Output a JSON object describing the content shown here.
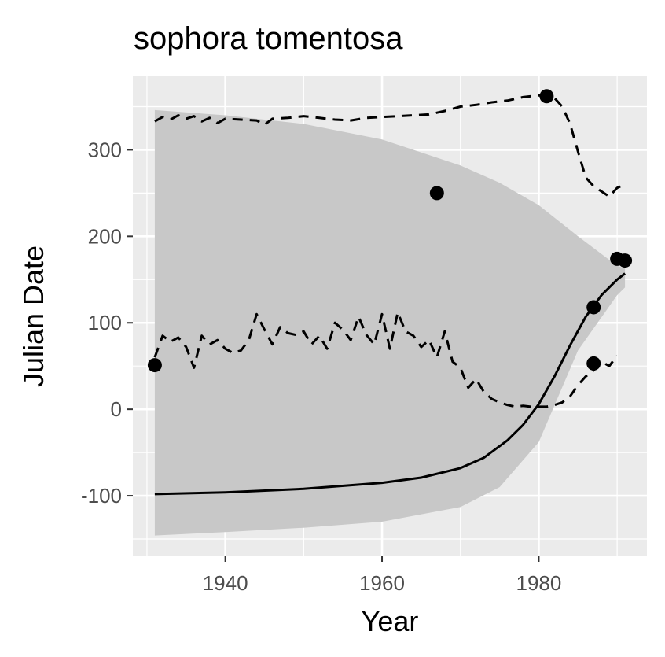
{
  "chart_data": {
    "type": "scatter",
    "title": "sophora tomentosa",
    "xlabel": "Year",
    "ylabel": "Julian Date",
    "xlim": [
      1928.2,
      1993.8
    ],
    "ylim": [
      -170,
      385
    ],
    "x_ticks": [
      1940,
      1960,
      1980
    ],
    "x_tick_labels": [
      "1940",
      "1960",
      "1980"
    ],
    "y_ticks": [
      -100,
      0,
      100,
      200,
      300
    ],
    "y_tick_labels": [
      "-100",
      "0",
      "100",
      "200",
      "300"
    ],
    "grid": true,
    "legend": "none",
    "points": [
      {
        "x": 1931,
        "y": 51
      },
      {
        "x": 1967,
        "y": 250
      },
      {
        "x": 1981,
        "y": 362
      },
      {
        "x": 1987,
        "y": 118
      },
      {
        "x": 1987,
        "y": 53
      },
      {
        "x": 1990,
        "y": 174
      },
      {
        "x": 1991,
        "y": 172
      }
    ],
    "fit_line": {
      "x": [
        1931,
        1940,
        1950,
        1960,
        1965,
        1970,
        1973,
        1976,
        1978,
        1980,
        1982,
        1984,
        1986,
        1988,
        1990,
        1991
      ],
      "y": [
        -98,
        -96,
        -92,
        -85,
        -79,
        -68,
        -56,
        -36,
        -18,
        6,
        38,
        74,
        107,
        132,
        150,
        157
      ]
    },
    "confidence_band": {
      "x": [
        1931,
        1940,
        1950,
        1960,
        1970,
        1975,
        1980,
        1985,
        1990,
        1991
      ],
      "upper": [
        346,
        340,
        330,
        312,
        282,
        262,
        236,
        200,
        166,
        163
      ],
      "lower": [
        -146,
        -142,
        -137,
        -130,
        -113,
        -90,
        -38,
        68,
        132,
        141
      ]
    },
    "upper_dashed": {
      "x": [
        1931,
        1932,
        1933,
        1934,
        1935,
        1936,
        1937,
        1938,
        1939,
        1940,
        1942,
        1944,
        1945,
        1946,
        1948,
        1950,
        1952,
        1954,
        1956,
        1958,
        1960,
        1962,
        1964,
        1966,
        1968,
        1970,
        1972,
        1974,
        1976,
        1978,
        1980,
        1982,
        1983,
        1984,
        1985,
        1986,
        1987,
        1988,
        1989,
        1990,
        1991
      ],
      "y": [
        333,
        338,
        335,
        340,
        336,
        339,
        333,
        337,
        331,
        336,
        335,
        334,
        329,
        336,
        337,
        339,
        337,
        335,
        334,
        337,
        338,
        339,
        340,
        341,
        345,
        350,
        352,
        355,
        357,
        361,
        363,
        360,
        350,
        330,
        298,
        268,
        258,
        252,
        246,
        256,
        260
      ]
    },
    "lower_dashed": {
      "x": [
        1931,
        1932,
        1933,
        1934,
        1935,
        1936,
        1937,
        1938,
        1939,
        1940,
        1941,
        1942,
        1943,
        1944,
        1945,
        1946,
        1947,
        1948,
        1949,
        1950,
        1951,
        1952,
        1953,
        1954,
        1955,
        1956,
        1957,
        1958,
        1959,
        1960,
        1961,
        1962,
        1963,
        1964,
        1965,
        1966,
        1967,
        1968,
        1969,
        1970,
        1971,
        1972,
        1973,
        1974,
        1975,
        1976,
        1977,
        1978,
        1979,
        1980,
        1981,
        1982,
        1983,
        1984,
        1985,
        1986,
        1987,
        1988,
        1989,
        1990
      ],
      "y": [
        60,
        85,
        78,
        83,
        72,
        48,
        85,
        75,
        80,
        70,
        65,
        68,
        80,
        110,
        92,
        75,
        95,
        88,
        86,
        90,
        75,
        85,
        70,
        100,
        92,
        80,
        107,
        86,
        75,
        110,
        70,
        112,
        90,
        85,
        72,
        80,
        60,
        90,
        55,
        48,
        25,
        35,
        20,
        12,
        8,
        5,
        3,
        4,
        3,
        3,
        3,
        5,
        8,
        15,
        28,
        38,
        45,
        55,
        50,
        62
      ]
    }
  }
}
